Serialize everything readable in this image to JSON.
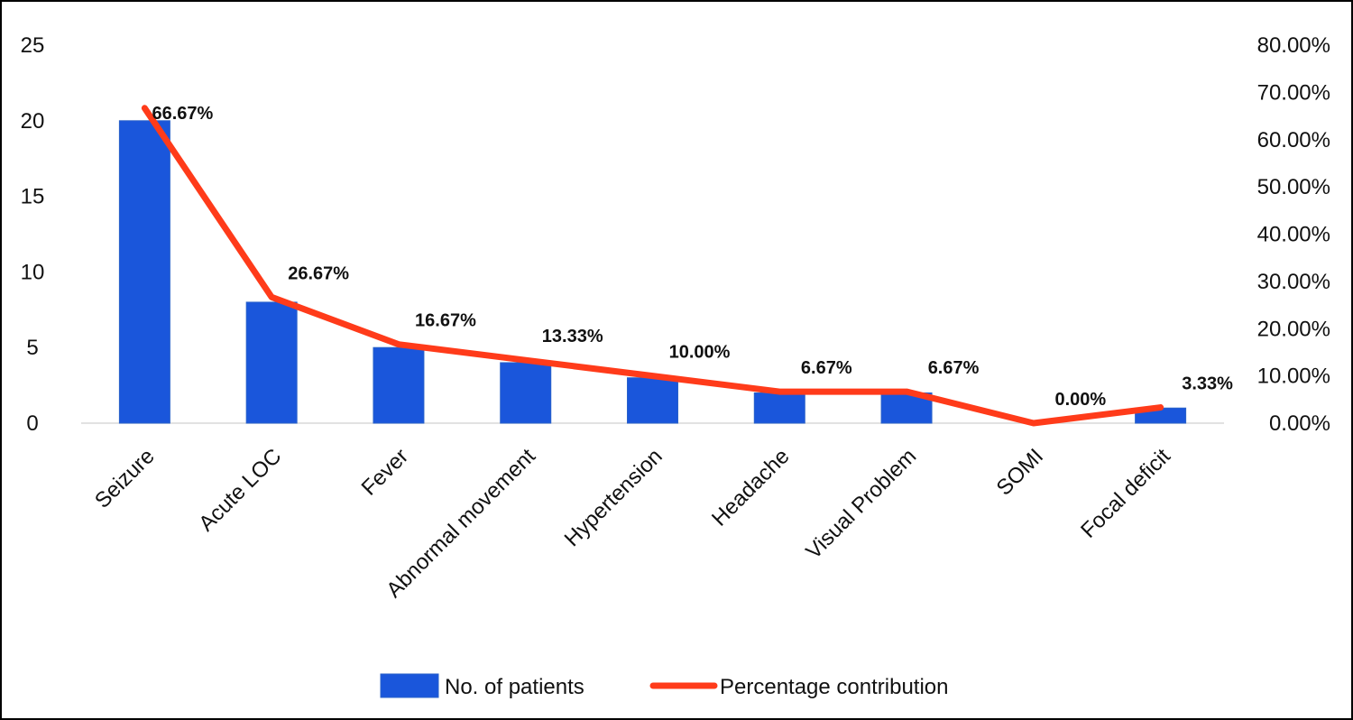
{
  "chart_data": {
    "type": "bar",
    "categories": [
      "Seizure",
      "Acute LOC",
      "Fever",
      "Abnormal movement",
      "Hypertension",
      "Headache",
      "Visual Problem",
      "SOMI",
      "Focal deficit"
    ],
    "series": [
      {
        "name": "No. of patients",
        "type": "bar",
        "axis": "left",
        "color": "#1a56db",
        "values": [
          20,
          8,
          5,
          4,
          3,
          2,
          2,
          0,
          1
        ]
      },
      {
        "name": "Percentage contribution",
        "type": "line",
        "axis": "right",
        "color": "#ff3b1a",
        "values": [
          66.67,
          26.67,
          16.67,
          13.33,
          10.0,
          6.67,
          6.67,
          0.0,
          3.33
        ],
        "data_labels": [
          "66.67%",
          "26.67%",
          "16.67%",
          "13.33%",
          "10.00%",
          "6.67%",
          "6.67%",
          "0.00%",
          "3.33%"
        ]
      }
    ],
    "y_left": {
      "lim": [
        0,
        25
      ],
      "ticks": [
        0,
        5,
        10,
        15,
        20,
        25
      ],
      "tick_labels": [
        "0",
        "5",
        "10",
        "15",
        "20",
        "25"
      ]
    },
    "y_right": {
      "lim": [
        0,
        80
      ],
      "ticks": [
        0,
        10,
        20,
        30,
        40,
        50,
        60,
        70,
        80
      ],
      "tick_labels": [
        "0.00%",
        "10.00%",
        "20.00%",
        "30.00%",
        "40.00%",
        "50.00%",
        "60.00%",
        "70.00%",
        "80.00%"
      ]
    },
    "title": "",
    "xlabel": "",
    "ylabel": "",
    "grid": false,
    "legend": {
      "position": "bottom",
      "entries": [
        "No. of patients",
        "Percentage contribution"
      ]
    }
  }
}
